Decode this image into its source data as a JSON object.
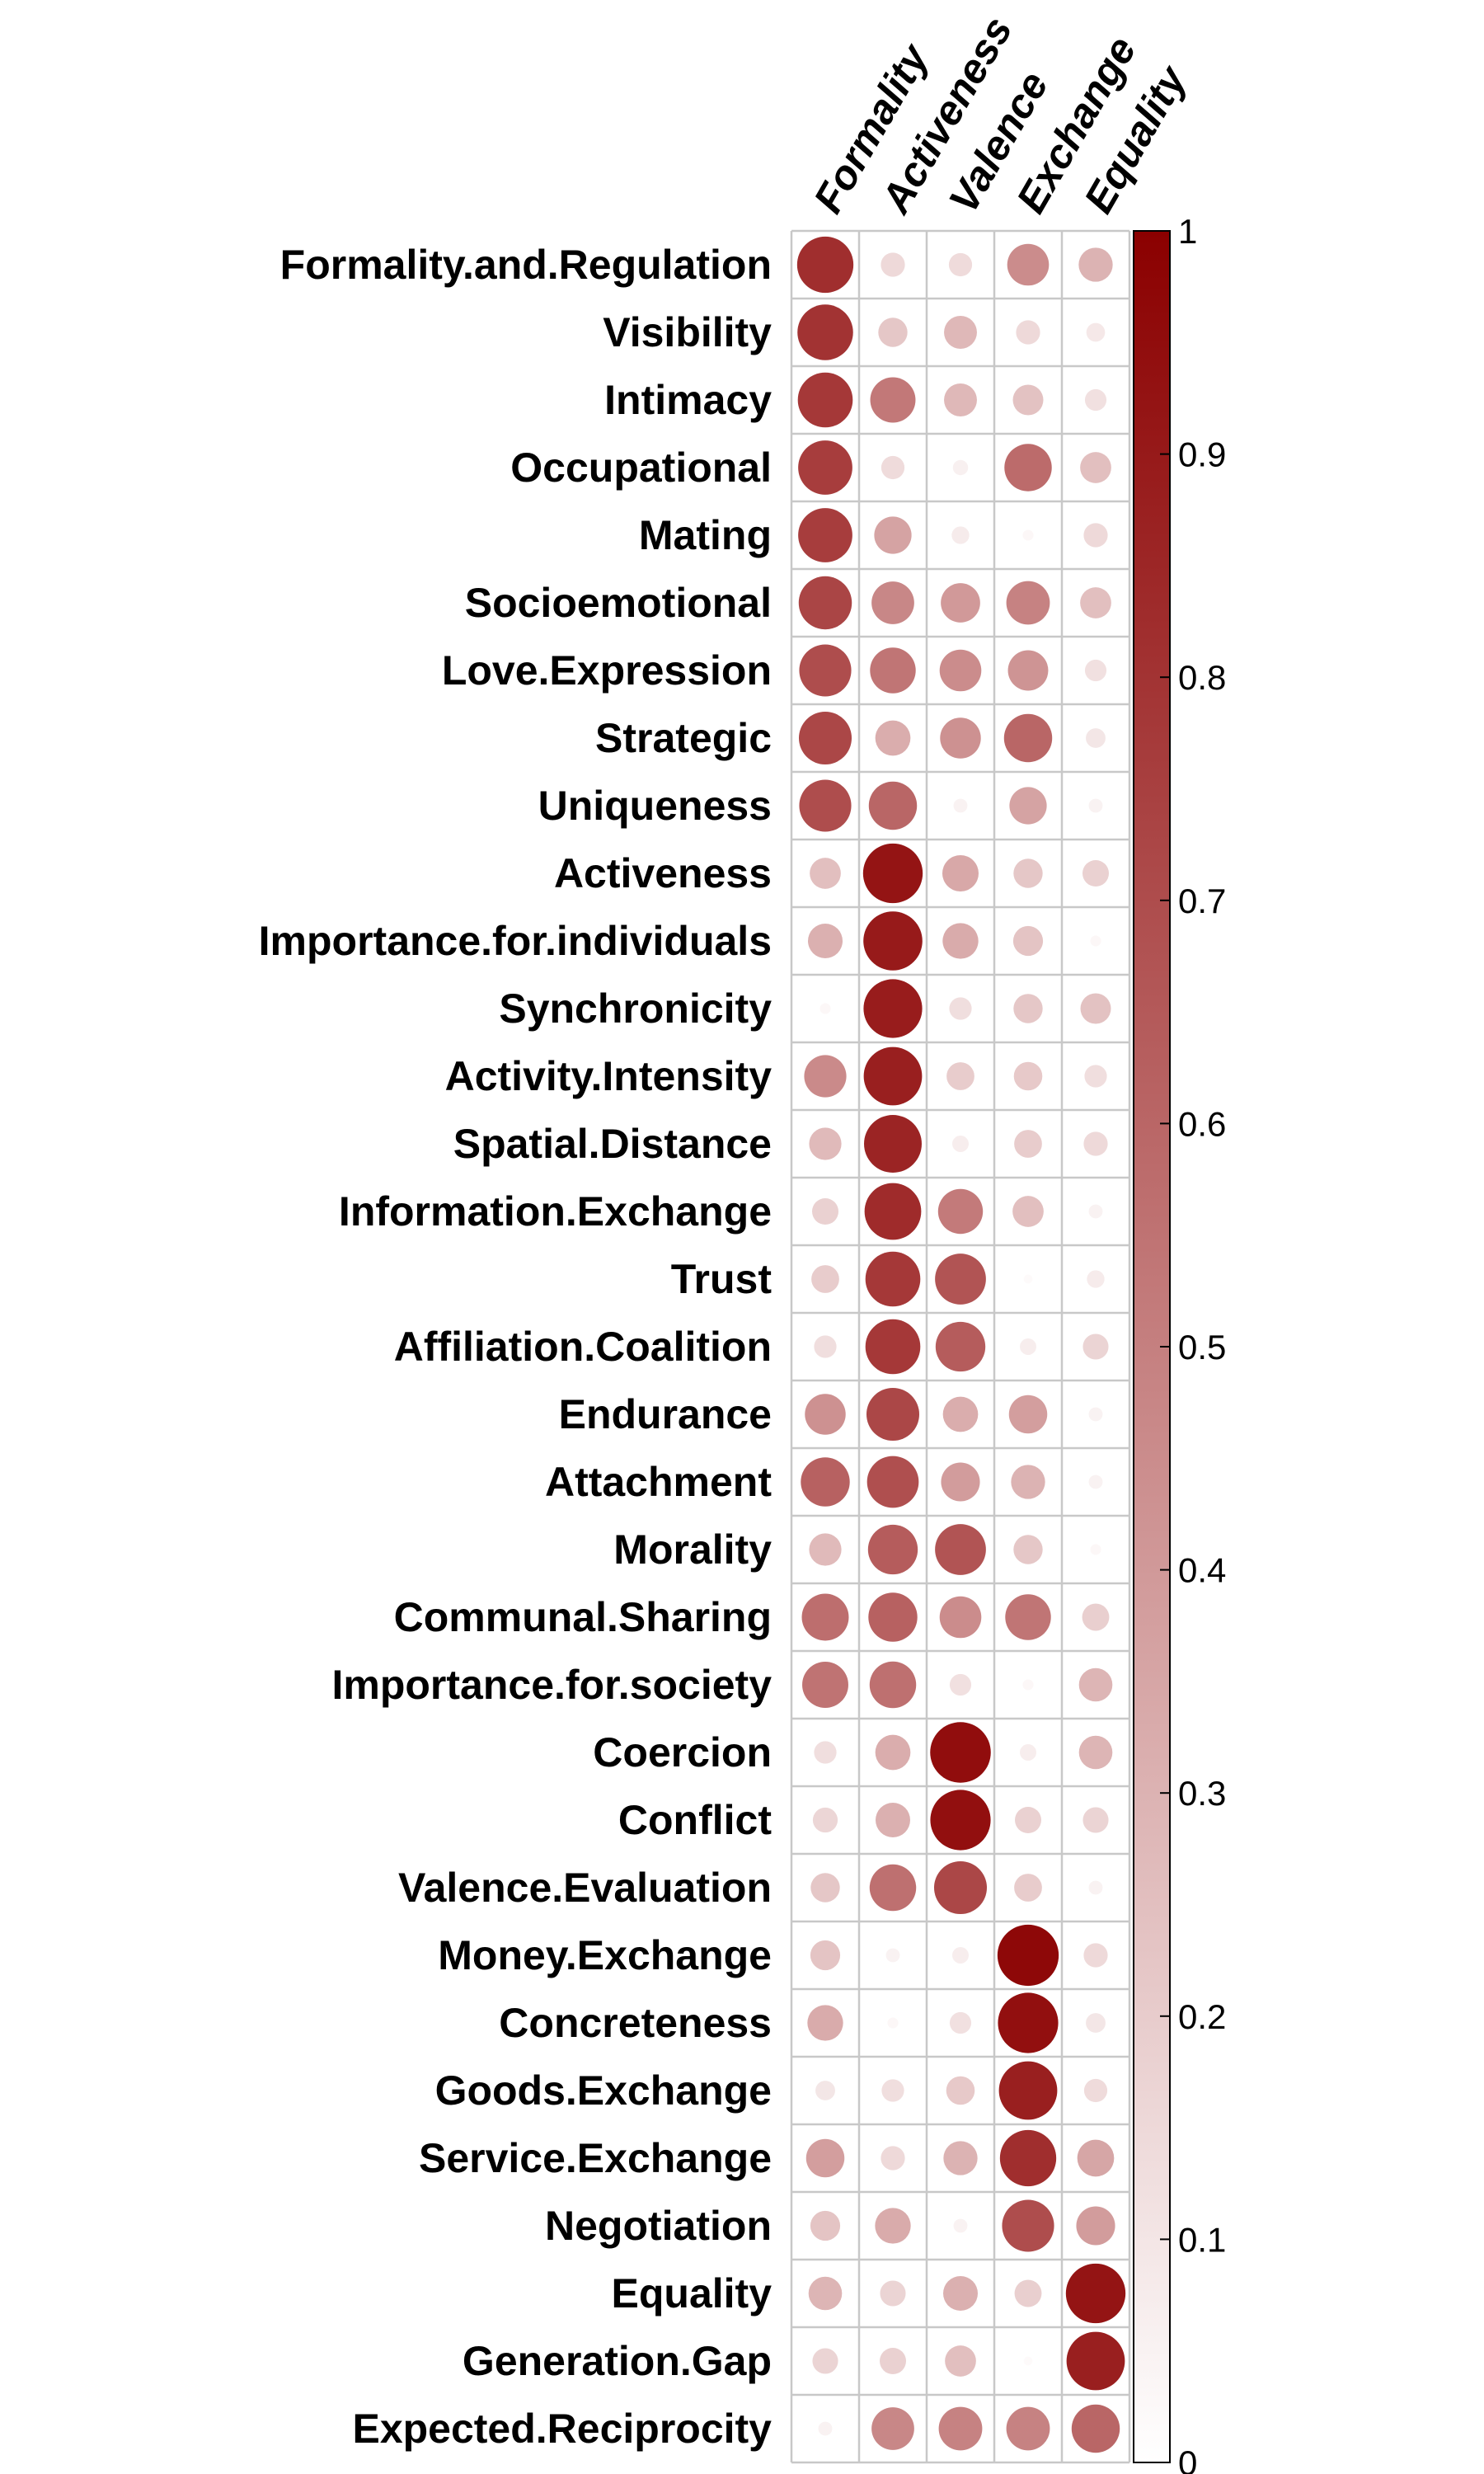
{
  "chart_data": {
    "type": "heatmap",
    "marker": "circle",
    "columns": [
      "Formality",
      "Activeness",
      "Valence",
      "Exchange",
      "Equality"
    ],
    "rows": [
      "Formality.and.Regulation",
      "Visibility",
      "Intimacy",
      "Occupational",
      "Mating",
      "Socioemotional",
      "Love.Expression",
      "Strategic",
      "Uniqueness",
      "Activeness",
      "Importance.for.individuals",
      "Synchronicity",
      "Activity.Intensity",
      "Spatial.Distance",
      "Information.Exchange",
      "Trust",
      "Affiliation.Coalition",
      "Endurance",
      "Attachment",
      "Morality",
      "Communal.Sharing",
      "Importance.for.society",
      "Coercion",
      "Conflict",
      "Valence.Evaluation",
      "Money.Exchange",
      "Concreteness",
      "Goods.Exchange",
      "Service.Exchange",
      "Negotiation",
      "Equality",
      "Generation.Gap",
      "Expected.Reciprocity"
    ],
    "values": [
      [
        0.82,
        0.15,
        0.14,
        0.45,
        0.3
      ],
      [
        0.8,
        0.22,
        0.28,
        0.15,
        0.09
      ],
      [
        0.78,
        0.53,
        0.28,
        0.24,
        0.12
      ],
      [
        0.76,
        0.14,
        0.06,
        0.58,
        0.25
      ],
      [
        0.76,
        0.36,
        0.08,
        0.03,
        0.15
      ],
      [
        0.73,
        0.47,
        0.4,
        0.49,
        0.25
      ],
      [
        0.7,
        0.54,
        0.45,
        0.42,
        0.12
      ],
      [
        0.72,
        0.32,
        0.43,
        0.6,
        0.1
      ],
      [
        0.7,
        0.6,
        0.05,
        0.36,
        0.05
      ],
      [
        0.25,
        0.92,
        0.34,
        0.22,
        0.18
      ],
      [
        0.31,
        0.9,
        0.33,
        0.23,
        0.03
      ],
      [
        0.03,
        0.89,
        0.13,
        0.22,
        0.24
      ],
      [
        0.46,
        0.88,
        0.2,
        0.21,
        0.13
      ],
      [
        0.27,
        0.86,
        0.07,
        0.2,
        0.15
      ],
      [
        0.18,
        0.83,
        0.52,
        0.25,
        0.05
      ],
      [
        0.2,
        0.78,
        0.67,
        0.02,
        0.08
      ],
      [
        0.13,
        0.78,
        0.64,
        0.07,
        0.17
      ],
      [
        0.43,
        0.72,
        0.32,
        0.38,
        0.05
      ],
      [
        0.62,
        0.69,
        0.39,
        0.3,
        0.05
      ],
      [
        0.27,
        0.64,
        0.67,
        0.22,
        0.03
      ],
      [
        0.57,
        0.62,
        0.45,
        0.54,
        0.19
      ],
      [
        0.55,
        0.56,
        0.12,
        0.03,
        0.29
      ],
      [
        0.13,
        0.32,
        0.95,
        0.07,
        0.29
      ],
      [
        0.16,
        0.31,
        0.94,
        0.18,
        0.17
      ],
      [
        0.22,
        0.56,
        0.72,
        0.2,
        0.05
      ],
      [
        0.23,
        0.05,
        0.07,
        0.97,
        0.15
      ],
      [
        0.33,
        0.03,
        0.12,
        0.94,
        0.1
      ],
      [
        0.1,
        0.13,
        0.21,
        0.88,
        0.14
      ],
      [
        0.38,
        0.15,
        0.3,
        0.82,
        0.35
      ],
      [
        0.23,
        0.33,
        0.05,
        0.7,
        0.39
      ],
      [
        0.29,
        0.17,
        0.31,
        0.19,
        0.92
      ],
      [
        0.17,
        0.18,
        0.25,
        0.02,
        0.88
      ],
      [
        0.05,
        0.47,
        0.49,
        0.49,
        0.6
      ]
    ],
    "colorbar": {
      "ticks": [
        "0",
        "0.1",
        "0.2",
        "0.3",
        "0.4",
        "0.5",
        "0.6",
        "0.7",
        "0.8",
        "0.9",
        "1"
      ],
      "range": [
        0,
        1
      ],
      "colors": {
        "low": "#ffffff",
        "high": "#8b0000"
      }
    },
    "grid": true
  }
}
